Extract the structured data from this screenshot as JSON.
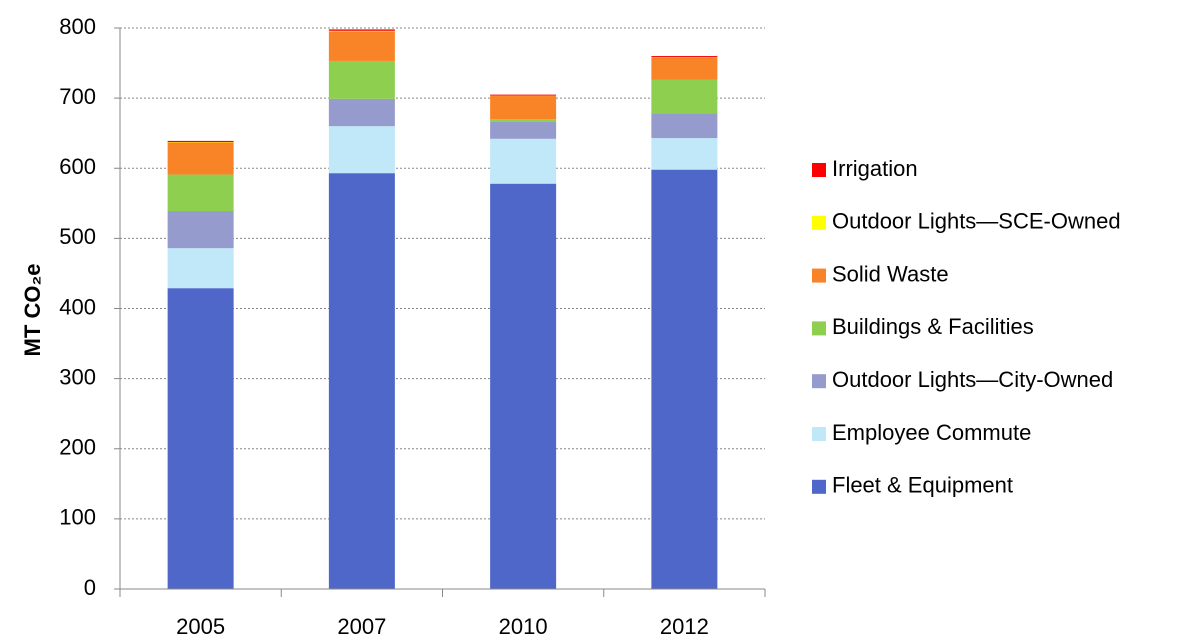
{
  "chart_data": {
    "type": "stacked_bar",
    "y_label": "MT CO₂e",
    "categories": [
      "2005",
      "2007",
      "2010",
      "2012"
    ],
    "series": [
      {
        "name": "Fleet & Equipment",
        "color": "#4f67c8",
        "values": [
          429,
          593,
          578,
          598
        ]
      },
      {
        "name": "Employee Commute",
        "color": "#c0e8f8",
        "values": [
          57,
          67,
          64,
          45
        ]
      },
      {
        "name": "Outdoor Lights—City-Owned",
        "color": "#959bcc",
        "values": [
          53,
          39,
          24,
          35
        ]
      },
      {
        "name": "Buildings & Facilities",
        "color": "#8fcf50",
        "values": [
          52,
          54,
          4,
          48
        ]
      },
      {
        "name": "Solid Waste",
        "color": "#f98428",
        "values": [
          45,
          42,
          33,
          32
        ]
      },
      {
        "name": "Outdoor Lights—SCE-Owned",
        "color": "#ffff00",
        "values": [
          1,
          1,
          0.5,
          0.5
        ]
      },
      {
        "name": "Irrigation",
        "color": "#ff0000",
        "values": [
          2,
          2,
          1.5,
          1.5
        ]
      }
    ],
    "ylim": [
      0,
      800
    ],
    "yticks": [
      0,
      100,
      200,
      300,
      400,
      500,
      600,
      700,
      800
    ],
    "grid": true,
    "legend": "right"
  }
}
